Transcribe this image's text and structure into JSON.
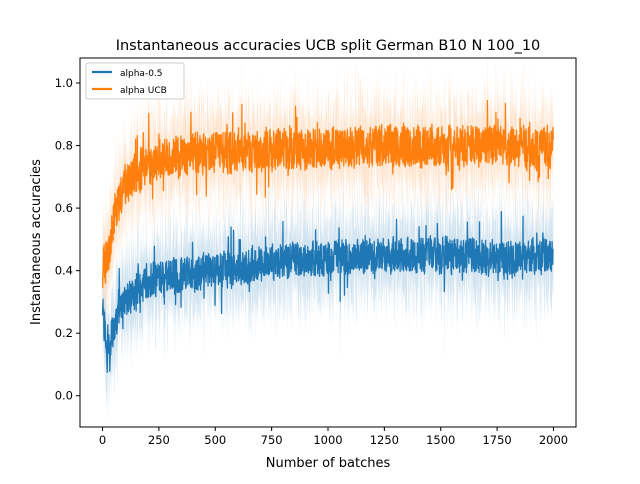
{
  "chart_data": {
    "type": "line",
    "title": "Instantaneous accuracies UCB split German B10 N 100_10",
    "xlabel": "Number of batches",
    "ylabel": "Instantaneous accuracies",
    "xlim": [
      -100,
      2100
    ],
    "ylim": [
      -0.1,
      1.08
    ],
    "xticks": [
      0,
      250,
      500,
      750,
      1000,
      1250,
      1500,
      1750,
      2000
    ],
    "xtick_labels": [
      "0",
      "250",
      "500",
      "750",
      "1000",
      "1250",
      "1500",
      "1750",
      "2000"
    ],
    "yticks": [
      0.0,
      0.2,
      0.4,
      0.6,
      0.8,
      1.0
    ],
    "ytick_labels": [
      "0.0",
      "0.2",
      "0.4",
      "0.6",
      "0.8",
      "1.0"
    ],
    "grid": false,
    "legend_position": "top-left",
    "n_points": 2000,
    "series": [
      {
        "name": "alpha-0.5",
        "color": "#1f77b4",
        "band_opacity": 0.2,
        "mean_trend": [
          {
            "x": 0,
            "y": 0.3
          },
          {
            "x": 20,
            "y": 0.12
          },
          {
            "x": 50,
            "y": 0.22
          },
          {
            "x": 100,
            "y": 0.3
          },
          {
            "x": 200,
            "y": 0.37
          },
          {
            "x": 400,
            "y": 0.39
          },
          {
            "x": 600,
            "y": 0.41
          },
          {
            "x": 800,
            "y": 0.43
          },
          {
            "x": 1000,
            "y": 0.44
          },
          {
            "x": 1250,
            "y": 0.45
          },
          {
            "x": 1500,
            "y": 0.45
          },
          {
            "x": 1750,
            "y": 0.44
          },
          {
            "x": 2000,
            "y": 0.45
          }
        ],
        "noise_amplitude": 0.055,
        "band_halfwidth": 0.1,
        "approx_range": [
          0.0,
          0.67
        ]
      },
      {
        "name": "alpha UCB",
        "color": "#ff7f0e",
        "band_opacity": 0.2,
        "mean_trend": [
          {
            "x": 0,
            "y": 0.4
          },
          {
            "x": 30,
            "y": 0.48
          },
          {
            "x": 60,
            "y": 0.6
          },
          {
            "x": 100,
            "y": 0.68
          },
          {
            "x": 200,
            "y": 0.74
          },
          {
            "x": 400,
            "y": 0.77
          },
          {
            "x": 600,
            "y": 0.78
          },
          {
            "x": 800,
            "y": 0.79
          },
          {
            "x": 1000,
            "y": 0.79
          },
          {
            "x": 1250,
            "y": 0.8
          },
          {
            "x": 1500,
            "y": 0.8
          },
          {
            "x": 1750,
            "y": 0.8
          },
          {
            "x": 2000,
            "y": 0.79
          }
        ],
        "noise_amplitude": 0.065,
        "band_halfwidth": 0.1,
        "approx_range": [
          0.3,
          1.0
        ]
      }
    ]
  }
}
